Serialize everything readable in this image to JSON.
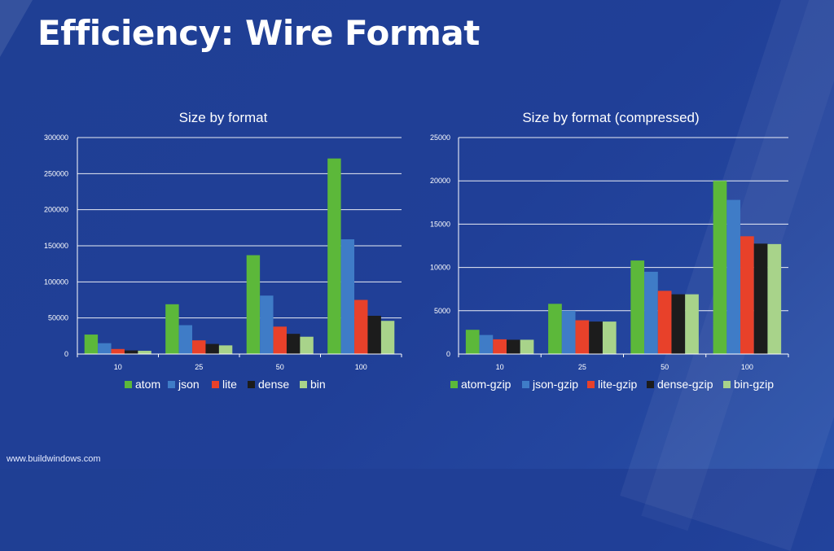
{
  "slide": {
    "title": "Efficiency: Wire Format",
    "footer": "www.buildwindows.com"
  },
  "colors": {
    "background": "#203f97",
    "series": [
      "#5cb83a",
      "#3f7cc7",
      "#e8412a",
      "#1c1c1c",
      "#a8d38a"
    ]
  },
  "chart_data": [
    {
      "type": "bar",
      "title": "Size by format",
      "categories": [
        "10",
        "25",
        "50",
        "100"
      ],
      "ylim": [
        0,
        300000
      ],
      "yticks": [
        0,
        50000,
        100000,
        150000,
        200000,
        250000,
        300000
      ],
      "grid": true,
      "legend_position": "bottom",
      "series": [
        {
          "name": "atom",
          "values": [
            27000,
            69000,
            137000,
            271000
          ]
        },
        {
          "name": "json",
          "values": [
            15000,
            40000,
            81000,
            159000
          ]
        },
        {
          "name": "lite",
          "values": [
            7000,
            19000,
            38000,
            75000
          ]
        },
        {
          "name": "dense",
          "values": [
            5000,
            14000,
            28000,
            53000
          ]
        },
        {
          "name": "bin",
          "values": [
            4500,
            12000,
            24000,
            46000
          ]
        }
      ]
    },
    {
      "type": "bar",
      "title": "Size by format (compressed)",
      "categories": [
        "10",
        "25",
        "50",
        "100"
      ],
      "ylim": [
        0,
        25000
      ],
      "yticks": [
        0,
        5000,
        10000,
        15000,
        20000,
        25000
      ],
      "grid": true,
      "legend_position": "bottom",
      "series": [
        {
          "name": "atom-gzip",
          "values": [
            2800,
            5800,
            10800,
            20000
          ]
        },
        {
          "name": "json-gzip",
          "values": [
            2200,
            5000,
            9500,
            17800
          ]
        },
        {
          "name": "lite-gzip",
          "values": [
            1700,
            3900,
            7300,
            13600
          ]
        },
        {
          "name": "dense-gzip",
          "values": [
            1650,
            3750,
            6900,
            12750
          ]
        },
        {
          "name": "bin-gzip",
          "values": [
            1650,
            3750,
            6900,
            12700
          ]
        }
      ]
    }
  ]
}
